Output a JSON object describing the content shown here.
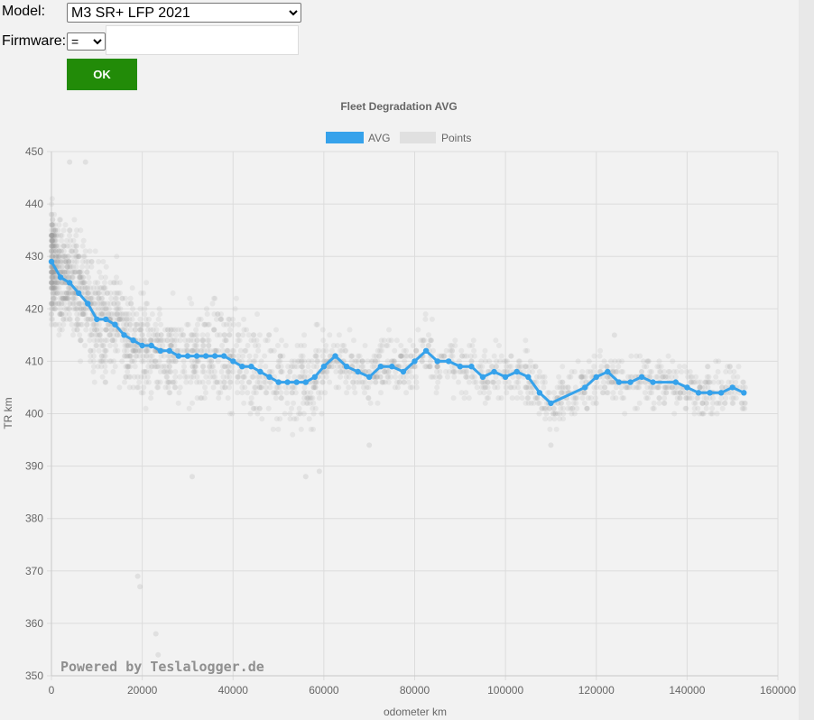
{
  "form": {
    "model_label": "Model:",
    "model_selected": "M3 SR+ LFP 2021",
    "firmware_label": "Firmware:",
    "firmware_operator": "=",
    "firmware_value": "",
    "ok_label": "OK"
  },
  "watermark": "Powered by Teslalogger.de",
  "colors": {
    "avg_line": "#36a2eb",
    "points": "#9e9e9e",
    "ok_button": "#228b08"
  },
  "chart_data": {
    "type": "scatter",
    "title": "Fleet Degradation AVG",
    "xlabel": "odometer km",
    "ylabel": "TR km",
    "xlim": [
      0,
      160000
    ],
    "ylim": [
      350,
      450
    ],
    "x_ticks": [
      0,
      20000,
      40000,
      60000,
      80000,
      100000,
      120000,
      140000,
      160000
    ],
    "y_ticks": [
      350,
      360,
      370,
      380,
      390,
      400,
      410,
      420,
      430,
      440,
      450
    ],
    "grid": true,
    "legend_position": "top",
    "series": [
      {
        "name": "AVG",
        "type": "line",
        "x": [
          0,
          2000,
          4000,
          6000,
          8000,
          10000,
          12000,
          14000,
          16000,
          18000,
          20000,
          22000,
          24000,
          26000,
          28000,
          30000,
          32000,
          34000,
          36000,
          38000,
          40000,
          42000,
          44000,
          46000,
          48000,
          50000,
          52000,
          54000,
          56000,
          58000,
          60000,
          62500,
          65000,
          67500,
          70000,
          72500,
          75000,
          77500,
          80000,
          82500,
          85000,
          87500,
          90000,
          92500,
          95000,
          97500,
          100000,
          102500,
          105000,
          107500,
          110000,
          117500,
          120000,
          122500,
          125000,
          127500,
          130000,
          132500,
          137500,
          140000,
          142500,
          145000,
          147500,
          150000,
          152500
        ],
        "y": [
          429,
          426,
          425,
          423,
          421,
          418,
          418,
          417,
          415,
          414,
          413,
          413,
          412,
          412,
          411,
          411,
          411,
          411,
          411,
          411,
          410,
          409,
          409,
          408,
          407,
          406,
          406,
          406,
          406,
          407,
          409,
          411,
          409,
          408,
          407,
          409,
          409,
          408,
          410,
          412,
          410,
          410,
          409,
          409,
          407,
          408,
          407,
          408,
          407,
          404,
          402,
          405,
          407,
          408,
          406,
          406,
          407,
          406,
          406,
          405,
          404,
          404,
          404,
          405,
          404
        ]
      },
      {
        "name": "Points",
        "type": "scatter",
        "x_range": [
          0,
          153000
        ],
        "y_range": [
          353,
          448
        ],
        "outliers": [
          {
            "x": 4000,
            "y": 448
          },
          {
            "x": 7500,
            "y": 448
          },
          {
            "x": 19000,
            "y": 369
          },
          {
            "x": 19500,
            "y": 367
          },
          {
            "x": 23000,
            "y": 358
          },
          {
            "x": 23500,
            "y": 354
          },
          {
            "x": 31000,
            "y": 388
          },
          {
            "x": 56000,
            "y": 388
          },
          {
            "x": 59000,
            "y": 389
          },
          {
            "x": 70000,
            "y": 394
          },
          {
            "x": 110000,
            "y": 394
          },
          {
            "x": 124000,
            "y": 415
          },
          {
            "x": 120000,
            "y": 402
          },
          {
            "x": 145000,
            "y": 406
          }
        ]
      }
    ]
  }
}
